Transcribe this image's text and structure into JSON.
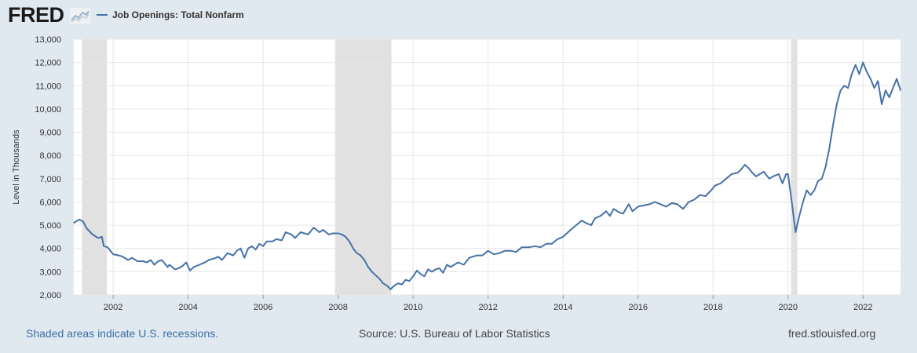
{
  "header": {
    "logo_text": "FRED",
    "series_title": "Job Openings: Total Nonfarm"
  },
  "footer": {
    "recession_note": "Shaded areas indicate U.S. recessions.",
    "source": "Source: U.S. Bureau of Labor Statistics",
    "site": "fred.stlouisfed.org"
  },
  "chart_data": {
    "type": "line",
    "title": "",
    "xlabel": "",
    "ylabel": "Level in Thousands",
    "xlim": [
      2000.95,
      2023.0
    ],
    "ylim": [
      2000,
      13000
    ],
    "yticks": [
      2000,
      3000,
      4000,
      5000,
      6000,
      7000,
      8000,
      9000,
      10000,
      11000,
      12000,
      13000
    ],
    "ytick_labels": [
      "2,000",
      "3,000",
      "4,000",
      "5,000",
      "6,000",
      "7,000",
      "8,000",
      "9,000",
      "10,000",
      "11,000",
      "12,000",
      "13,000"
    ],
    "xticks": [
      2002,
      2004,
      2006,
      2008,
      2010,
      2012,
      2014,
      2016,
      2018,
      2020,
      2022
    ],
    "xtick_labels": [
      "2002",
      "2004",
      "2006",
      "2008",
      "2010",
      "2012",
      "2014",
      "2016",
      "2018",
      "2020",
      "2022"
    ],
    "grid": true,
    "line_color": "#4572a7",
    "recession_color": "#e1e1e1",
    "recessions": [
      [
        2001.17,
        2001.83
      ],
      [
        2007.92,
        2009.42
      ],
      [
        2020.08,
        2020.25
      ]
    ],
    "series": [
      {
        "name": "Job Openings: Total Nonfarm",
        "x": [
          2000.95,
          2001.1,
          2001.2,
          2001.3,
          2001.45,
          2001.6,
          2001.7,
          2001.75,
          2001.85,
          2002.0,
          2002.15,
          2002.25,
          2002.4,
          2002.5,
          2002.65,
          2002.8,
          2002.9,
          2003.0,
          2003.1,
          2003.2,
          2003.3,
          2003.45,
          2003.5,
          2003.65,
          2003.75,
          2003.85,
          2003.95,
          2004.05,
          2004.15,
          2004.3,
          2004.45,
          2004.55,
          2004.65,
          2004.75,
          2004.8,
          2004.9,
          2005.05,
          2005.2,
          2005.3,
          2005.4,
          2005.5,
          2005.6,
          2005.7,
          2005.8,
          2005.9,
          2006.0,
          2006.1,
          2006.25,
          2006.35,
          2006.5,
          2006.6,
          2006.75,
          2006.85,
          2007.0,
          2007.1,
          2007.2,
          2007.35,
          2007.5,
          2007.6,
          2007.75,
          2007.85,
          2008.0,
          2008.1,
          2008.2,
          2008.3,
          2008.4,
          2008.5,
          2008.6,
          2008.7,
          2008.8,
          2008.9,
          2009.0,
          2009.1,
          2009.2,
          2009.3,
          2009.4,
          2009.5,
          2009.6,
          2009.7,
          2009.8,
          2009.9,
          2010.0,
          2010.1,
          2010.2,
          2010.3,
          2010.4,
          2010.5,
          2010.6,
          2010.7,
          2010.8,
          2010.9,
          2011.0,
          2011.2,
          2011.35,
          2011.5,
          2011.7,
          2011.85,
          2012.0,
          2012.15,
          2012.3,
          2012.45,
          2012.6,
          2012.75,
          2012.9,
          2013.1,
          2013.25,
          2013.4,
          2013.55,
          2013.7,
          2013.85,
          2014.0,
          2014.2,
          2014.35,
          2014.5,
          2014.6,
          2014.75,
          2014.85,
          2015.0,
          2015.15,
          2015.25,
          2015.35,
          2015.5,
          2015.6,
          2015.75,
          2015.85,
          2016.0,
          2016.15,
          2016.3,
          2016.45,
          2016.6,
          2016.75,
          2016.9,
          2017.05,
          2017.2,
          2017.35,
          2017.5,
          2017.65,
          2017.8,
          2017.95,
          2018.05,
          2018.2,
          2018.35,
          2018.5,
          2018.65,
          2018.75,
          2018.85,
          2018.95,
          2019.05,
          2019.15,
          2019.25,
          2019.35,
          2019.5,
          2019.6,
          2019.75,
          2019.85,
          2019.95,
          2020.0,
          2020.1,
          2020.2,
          2020.3,
          2020.4,
          2020.5,
          2020.6,
          2020.7,
          2020.8,
          2020.9,
          2021.0,
          2021.1,
          2021.2,
          2021.3,
          2021.4,
          2021.5,
          2021.6,
          2021.7,
          2021.8,
          2021.9,
          2022.0,
          2022.1,
          2022.2,
          2022.3,
          2022.4,
          2022.5,
          2022.6,
          2022.7,
          2022.8,
          2022.9,
          2023.0
        ],
        "values": [
          5100,
          5250,
          5150,
          4850,
          4600,
          4450,
          4500,
          4100,
          4050,
          3750,
          3700,
          3650,
          3500,
          3600,
          3450,
          3450,
          3400,
          3500,
          3300,
          3450,
          3500,
          3200,
          3300,
          3100,
          3150,
          3250,
          3400,
          3050,
          3200,
          3300,
          3400,
          3500,
          3550,
          3600,
          3650,
          3500,
          3800,
          3700,
          3900,
          4000,
          3600,
          4000,
          4100,
          3950,
          4200,
          4100,
          4300,
          4300,
          4400,
          4350,
          4700,
          4600,
          4450,
          4700,
          4650,
          4600,
          4900,
          4700,
          4800,
          4600,
          4650,
          4650,
          4600,
          4500,
          4300,
          4000,
          3800,
          3700,
          3500,
          3200,
          3000,
          2850,
          2700,
          2500,
          2400,
          2250,
          2400,
          2500,
          2450,
          2650,
          2600,
          2800,
          3050,
          2900,
          2800,
          3100,
          3000,
          3100,
          3150,
          2950,
          3300,
          3200,
          3400,
          3300,
          3600,
          3700,
          3700,
          3900,
          3750,
          3800,
          3900,
          3900,
          3850,
          4050,
          4050,
          4100,
          4050,
          4200,
          4200,
          4400,
          4500,
          4800,
          5000,
          5200,
          5100,
          5000,
          5300,
          5400,
          5600,
          5400,
          5700,
          5550,
          5500,
          5900,
          5600,
          5800,
          5850,
          5900,
          6000,
          5900,
          5800,
          5950,
          5900,
          5700,
          6000,
          6100,
          6300,
          6250,
          6500,
          6700,
          6800,
          7000,
          7200,
          7250,
          7400,
          7600,
          7450,
          7250,
          7100,
          7200,
          7300,
          7000,
          7100,
          7200,
          6800,
          7200,
          7200,
          6000,
          4700,
          5400,
          6000,
          6500,
          6300,
          6500,
          6900,
          7000,
          7500,
          8300,
          9300,
          10200,
          10800,
          11000,
          10900,
          11500,
          11900,
          11500,
          12000,
          11600,
          11300,
          10900,
          11200,
          10200,
          10800,
          10500,
          10900,
          11300,
          10800
        ]
      }
    ]
  }
}
